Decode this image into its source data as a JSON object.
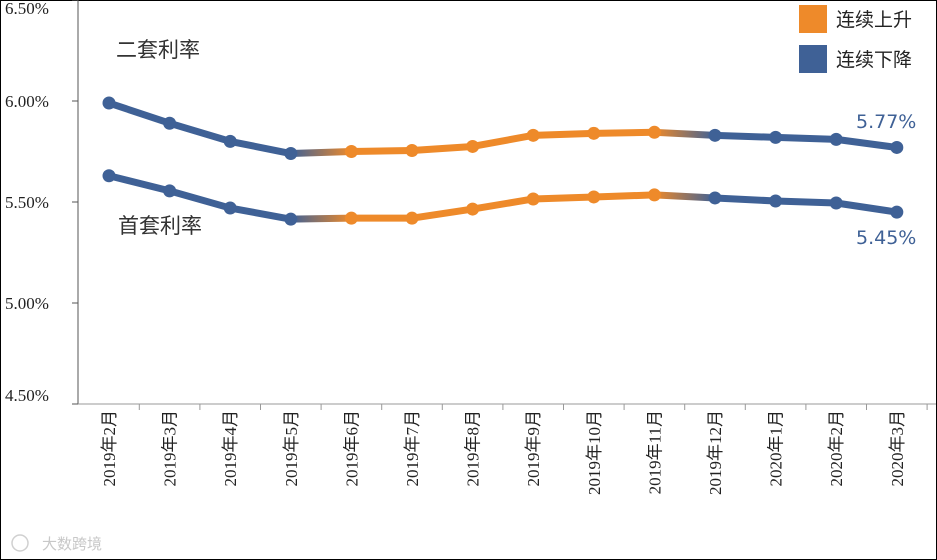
{
  "chart_data": {
    "type": "line",
    "categories": [
      "2019年2月",
      "2019年3月",
      "2019年4月",
      "2019年5月",
      "2019年6月",
      "2019年7月",
      "2019年8月",
      "2019年9月",
      "2019年10月",
      "2019年11月",
      "2019年12月",
      "2020年1月",
      "2020年2月",
      "2020年3月"
    ],
    "series": [
      {
        "name": "二套利率",
        "values": [
          5.99,
          5.89,
          5.8,
          5.74,
          5.75,
          5.755,
          5.775,
          5.83,
          5.84,
          5.845,
          5.83,
          5.82,
          5.81,
          5.77
        ],
        "trend": [
          "down",
          "down",
          "down",
          "up",
          "up",
          "up",
          "up",
          "up",
          "up",
          "down",
          "down",
          "down",
          "down"
        ]
      },
      {
        "name": "首套利率",
        "values": [
          5.63,
          5.555,
          5.47,
          5.415,
          5.42,
          5.42,
          5.465,
          5.515,
          5.525,
          5.535,
          5.52,
          5.505,
          5.495,
          5.45
        ],
        "trend": [
          "down",
          "down",
          "down",
          "up",
          "up",
          "up",
          "up",
          "up",
          "up",
          "down",
          "down",
          "down",
          "down"
        ]
      }
    ],
    "ylim": [
      4.5,
      6.5
    ],
    "yticks": [
      "4.50%",
      "5.00%",
      "5.50%",
      "6.00%",
      "6.50%"
    ],
    "ytick_values": [
      4.5,
      5.0,
      5.5,
      6.0,
      6.5
    ],
    "end_labels": [
      "5.77%",
      "5.45%"
    ],
    "legend": [
      {
        "label": "连续上升",
        "color": "#ee8a2a"
      },
      {
        "label": "连续下降",
        "color": "#3f6196"
      }
    ],
    "legend_position": "top-right",
    "grid": false,
    "colors": {
      "up": "#ee8a2a",
      "down": "#3f6196"
    }
  },
  "watermark": "大数跨境"
}
